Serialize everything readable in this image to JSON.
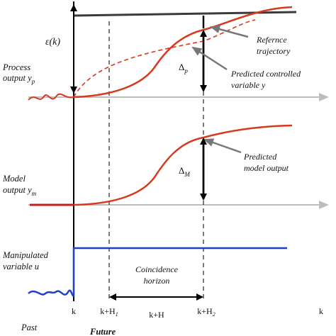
{
  "labels": {
    "epsilon": "ε(k)",
    "process_output_line1": "Process",
    "process_output_line2": "output y",
    "process_output_sub": "p",
    "model_output_line1": "Model",
    "model_output_line2": "output  y",
    "model_output_sub": "m",
    "manipulated_line1": "Manipulated",
    "manipulated_line2": "variable u",
    "reference_line1": "Refernce",
    "reference_line2": "trajectory",
    "predicted_controlled_line1": "Predicted controlled",
    "predicted_controlled_line2": "variable y",
    "predicted_model_line1": "Predicted",
    "predicted_model_line2": "model output",
    "delta_p": "Δ",
    "delta_p_sub": "p",
    "delta_m": "Δ",
    "delta_m_sub": "M",
    "coincidence_line1": "Coincidence",
    "coincidence_line2": "horizon",
    "tick_k": "k",
    "tick_k_h1": "k+H",
    "tick_k_h1_sub": "1",
    "tick_k_h": "k+H",
    "tick_k_h2": "k+H",
    "tick_k_h2_sub": "2",
    "tick_k_end": "k",
    "past": "Past",
    "future": "Future"
  },
  "colors": {
    "process_curve": "#d9381e",
    "reference_curve": "#d9381e",
    "model_curve": "#d9381e",
    "setpoint": "#3a3a3a",
    "manipulated": "#1f3fd1",
    "past_input": "#1f3fd1",
    "arrows": "#000000",
    "pointer_arrows": "#777777",
    "time_axes": "#bdbdbd",
    "dashed_lines": "#222222"
  }
}
